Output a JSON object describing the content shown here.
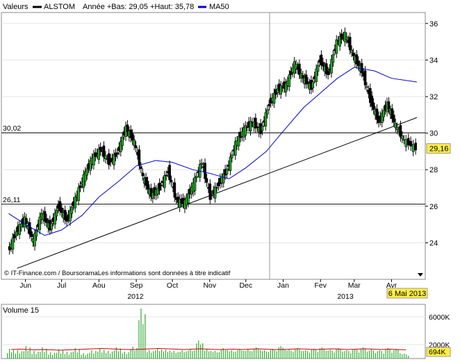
{
  "legend": {
    "label": "Valeurs",
    "series_name": "ALSTOM",
    "range_text": "Année +Bas: 29,05 +Haut: 35,78",
    "ma_name": "MA50",
    "price_color": "#000000",
    "ma_color": "#0000cc"
  },
  "source_note": "© IT-Finance.com / BoursoramaLes informations sont données à titre indicatif",
  "date_label": "6 Mai 2013",
  "last_price_label": "29,16",
  "volume_title": "Volume 15",
  "last_volume_label": "694K",
  "chart_data": [
    {
      "type": "candlestick",
      "title": "",
      "xlabel": "",
      "ylabel": "",
      "ylim": [
        22.0,
        36.6
      ],
      "yticks": [
        24,
        26,
        28,
        30,
        32,
        34,
        36
      ],
      "ytick_labels": [
        "24",
        "26",
        "28",
        "30",
        "32",
        "34",
        "36"
      ],
      "months": [
        "Jun",
        "Jul",
        "Aou",
        "Sep",
        "Oct",
        "Nov",
        "Dec",
        "Jan",
        "Fev",
        "Mar",
        "Avr"
      ],
      "years": [
        "2012",
        "2013"
      ],
      "resistance_lines": [
        {
          "value": 30.02,
          "label": "30,02"
        },
        {
          "value": 26.11,
          "label": "26,11"
        }
      ],
      "trendline": {
        "from": [
          "2012-06-08",
          22.6
        ],
        "to": [
          "2013-05-06",
          30.85
        ]
      },
      "closes": [
        {
          "date": "2012-06-01",
          "close": 23.5
        },
        {
          "date": "2012-06-08",
          "close": 24.6
        },
        {
          "date": "2012-06-15",
          "close": 25.3
        },
        {
          "date": "2012-06-22",
          "close": 24.1
        },
        {
          "date": "2012-06-29",
          "close": 25.6
        },
        {
          "date": "2012-07-06",
          "close": 24.8
        },
        {
          "date": "2012-07-13",
          "close": 26.0
        },
        {
          "date": "2012-07-20",
          "close": 25.2
        },
        {
          "date": "2012-07-27",
          "close": 26.4
        },
        {
          "date": "2012-08-03",
          "close": 27.6
        },
        {
          "date": "2012-08-10",
          "close": 28.6
        },
        {
          "date": "2012-08-17",
          "close": 29.1
        },
        {
          "date": "2012-08-24",
          "close": 28.4
        },
        {
          "date": "2012-08-31",
          "close": 28.9
        },
        {
          "date": "2012-09-07",
          "close": 30.3
        },
        {
          "date": "2012-09-14",
          "close": 29.5
        },
        {
          "date": "2012-09-21",
          "close": 27.6
        },
        {
          "date": "2012-09-28",
          "close": 26.6
        },
        {
          "date": "2012-10-05",
          "close": 27.0
        },
        {
          "date": "2012-10-12",
          "close": 27.9
        },
        {
          "date": "2012-10-19",
          "close": 26.3
        },
        {
          "date": "2012-10-26",
          "close": 26.2
        },
        {
          "date": "2012-11-02",
          "close": 27.2
        },
        {
          "date": "2012-11-09",
          "close": 28.4
        },
        {
          "date": "2012-11-16",
          "close": 26.5
        },
        {
          "date": "2012-11-23",
          "close": 27.2
        },
        {
          "date": "2012-11-30",
          "close": 28.0
        },
        {
          "date": "2012-12-07",
          "close": 29.4
        },
        {
          "date": "2012-12-14",
          "close": 30.2
        },
        {
          "date": "2012-12-21",
          "close": 30.6
        },
        {
          "date": "2012-12-28",
          "close": 30.1
        },
        {
          "date": "2013-01-04",
          "close": 31.6
        },
        {
          "date": "2013-01-11",
          "close": 32.4
        },
        {
          "date": "2013-01-18",
          "close": 32.6
        },
        {
          "date": "2013-01-25",
          "close": 33.8
        },
        {
          "date": "2013-02-01",
          "close": 33.0
        },
        {
          "date": "2013-02-08",
          "close": 32.5
        },
        {
          "date": "2013-02-15",
          "close": 34.0
        },
        {
          "date": "2013-02-22",
          "close": 33.2
        },
        {
          "date": "2013-03-01",
          "close": 35.0
        },
        {
          "date": "2013-03-08",
          "close": 35.4
        },
        {
          "date": "2013-03-15",
          "close": 34.2
        },
        {
          "date": "2013-03-22",
          "close": 33.4
        },
        {
          "date": "2013-03-29",
          "close": 31.8
        },
        {
          "date": "2013-04-05",
          "close": 30.6
        },
        {
          "date": "2013-04-12",
          "close": 31.6
        },
        {
          "date": "2013-04-19",
          "close": 30.4
        },
        {
          "date": "2013-04-26",
          "close": 29.6
        },
        {
          "date": "2013-05-06",
          "close": 29.16
        }
      ],
      "ma50": [
        {
          "date": "2012-06-01",
          "value": 25.6
        },
        {
          "date": "2012-06-15",
          "value": 25.0
        },
        {
          "date": "2012-07-01",
          "value": 24.4
        },
        {
          "date": "2012-07-15",
          "value": 24.7
        },
        {
          "date": "2012-08-01",
          "value": 25.5
        },
        {
          "date": "2012-08-15",
          "value": 26.5
        },
        {
          "date": "2012-09-01",
          "value": 27.4
        },
        {
          "date": "2012-09-15",
          "value": 28.2
        },
        {
          "date": "2012-10-01",
          "value": 28.5
        },
        {
          "date": "2012-10-15",
          "value": 28.4
        },
        {
          "date": "2012-11-01",
          "value": 28.0
        },
        {
          "date": "2012-11-15",
          "value": 27.8
        },
        {
          "date": "2012-12-01",
          "value": 27.5
        },
        {
          "date": "2012-12-15",
          "value": 28.1
        },
        {
          "date": "2013-01-01",
          "value": 29.0
        },
        {
          "date": "2013-01-15",
          "value": 30.1
        },
        {
          "date": "2013-02-01",
          "value": 31.4
        },
        {
          "date": "2013-02-15",
          "value": 32.2
        },
        {
          "date": "2013-03-01",
          "value": 33.0
        },
        {
          "date": "2013-03-15",
          "value": 33.6
        },
        {
          "date": "2013-04-01",
          "value": 33.4
        },
        {
          "date": "2013-04-15",
          "value": 33.0
        },
        {
          "date": "2013-05-06",
          "value": 32.8
        }
      ]
    },
    {
      "type": "bar",
      "title": "Volume 15",
      "ylim": [
        0,
        7000000
      ],
      "yticks": [
        2000000,
        6000000
      ],
      "ytick_labels": [
        "2000K",
        "6000K"
      ],
      "volumes_k": [
        1400,
        1200,
        1800,
        1100,
        1600,
        900,
        1300,
        1000,
        1500,
        800,
        1200,
        1400,
        1100,
        1600,
        1000,
        1700,
        7200,
        1200,
        1500,
        1300,
        1100,
        1200,
        1400,
        2600,
        1300,
        1100,
        1500,
        1200,
        1400,
        1300,
        1600,
        1200,
        1400,
        1800,
        1300,
        1500,
        1200,
        1400,
        1600,
        1300,
        1500,
        1200,
        1400,
        1600,
        1300,
        1200,
        1500,
        1400,
        694
      ],
      "volume_ma_k": [
        1300,
        1350,
        1300,
        1250,
        1300,
        1250,
        1200,
        1250,
        1300,
        1350,
        1400,
        1450,
        1400,
        1350,
        1300,
        1300,
        1350,
        1400,
        1450,
        1400,
        1350,
        1300,
        1350,
        1400,
        1350,
        1300,
        1300,
        1350,
        1300,
        1350,
        1400,
        1350,
        1300,
        1300,
        1350,
        1400,
        1350,
        1300,
        1350,
        1400,
        1350,
        1300,
        1350,
        1400,
        1350,
        1300,
        1350,
        1300,
        1250
      ]
    }
  ]
}
